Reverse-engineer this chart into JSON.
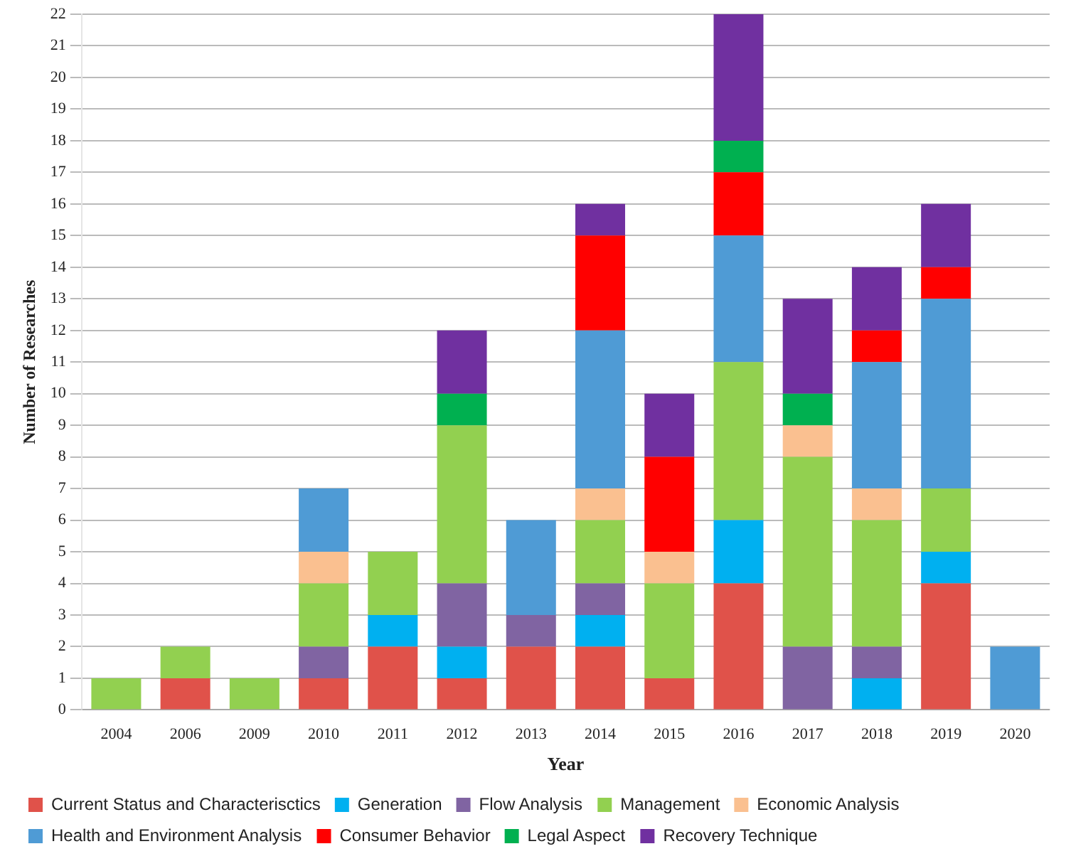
{
  "chart_data": {
    "type": "bar",
    "stacked": true,
    "xlabel": "Year",
    "ylabel": "Number of Researches",
    "categories": [
      "2004",
      "2006",
      "2009",
      "2010",
      "2011",
      "2012",
      "2013",
      "2014",
      "2015",
      "2016",
      "2017",
      "2018",
      "2019",
      "2020"
    ],
    "series": [
      {
        "name": "Current Status and Characterisctics",
        "color": "#e0524a",
        "values": [
          0,
          1,
          0,
          1,
          2,
          1,
          2,
          2,
          1,
          4,
          0,
          0,
          4,
          0
        ]
      },
      {
        "name": "Generation",
        "color": "#00b0f0",
        "values": [
          0,
          0,
          0,
          0,
          1,
          1,
          0,
          1,
          0,
          2,
          0,
          1,
          1,
          0
        ]
      },
      {
        "name": "Flow Analysis",
        "color": "#8064a2",
        "values": [
          0,
          0,
          0,
          1,
          0,
          2,
          1,
          1,
          0,
          0,
          2,
          1,
          0,
          0
        ]
      },
      {
        "name": "Management",
        "color": "#92d050",
        "values": [
          1,
          1,
          1,
          2,
          2,
          5,
          0,
          2,
          3,
          5,
          6,
          4,
          2,
          0
        ]
      },
      {
        "name": "Economic Analysis",
        "color": "#fac090",
        "values": [
          0,
          0,
          0,
          1,
          0,
          0,
          0,
          1,
          1,
          0,
          1,
          1,
          0,
          0
        ]
      },
      {
        "name": "Health and Environment Analysis",
        "color": "#4f9bd5",
        "values": [
          0,
          0,
          0,
          2,
          0,
          0,
          3,
          5,
          0,
          4,
          0,
          4,
          6,
          2
        ]
      },
      {
        "name": "Consumer Behavior",
        "color": "#ff0000",
        "values": [
          0,
          0,
          0,
          0,
          0,
          0,
          0,
          3,
          3,
          2,
          0,
          1,
          1,
          0
        ]
      },
      {
        "name": "Legal Aspect",
        "color": "#00b050",
        "values": [
          0,
          0,
          0,
          0,
          0,
          1,
          0,
          0,
          0,
          1,
          1,
          0,
          0,
          0
        ]
      },
      {
        "name": "Recovery Technique",
        "color": "#7030a0",
        "values": [
          0,
          0,
          0,
          0,
          0,
          2,
          0,
          1,
          2,
          4,
          3,
          2,
          2,
          0
        ]
      }
    ],
    "ylim": [
      0,
      22
    ],
    "yticks": [
      0,
      1,
      2,
      3,
      4,
      5,
      6,
      7,
      8,
      9,
      10,
      11,
      12,
      13,
      14,
      15,
      16,
      17,
      18,
      19,
      20,
      21,
      22
    ],
    "grid": "y",
    "legend": "bottom"
  }
}
